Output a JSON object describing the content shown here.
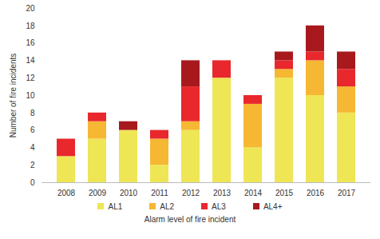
{
  "chart_data": {
    "type": "bar",
    "stacked": true,
    "xlabel": "Alarm level of fire incident",
    "ylabel": "Number of fire incidents",
    "categories": [
      "2008",
      "2009",
      "2010",
      "2011",
      "2012",
      "2013",
      "2014",
      "2015",
      "2016",
      "2017"
    ],
    "series": [
      {
        "name": "AL1",
        "color": "#eee655",
        "values": [
          3,
          5,
          6,
          2,
          6,
          12,
          4,
          12,
          10,
          8
        ]
      },
      {
        "name": "AL2",
        "color": "#f6b733",
        "values": [
          0,
          2,
          0,
          3,
          1,
          0,
          5,
          1,
          4,
          3
        ]
      },
      {
        "name": "AL3",
        "color": "#e8282c",
        "values": [
          2,
          1,
          0,
          1,
          4,
          2,
          1,
          1,
          1,
          2
        ]
      },
      {
        "name": "AL4+",
        "color": "#a8191e",
        "values": [
          0,
          0,
          1,
          0,
          3,
          0,
          0,
          1,
          3,
          2
        ]
      }
    ],
    "ylim": [
      0,
      20
    ],
    "yticks": [
      0,
      2,
      4,
      6,
      8,
      10,
      12,
      14,
      16,
      18,
      20
    ],
    "grid": false,
    "legend": "bottom"
  }
}
